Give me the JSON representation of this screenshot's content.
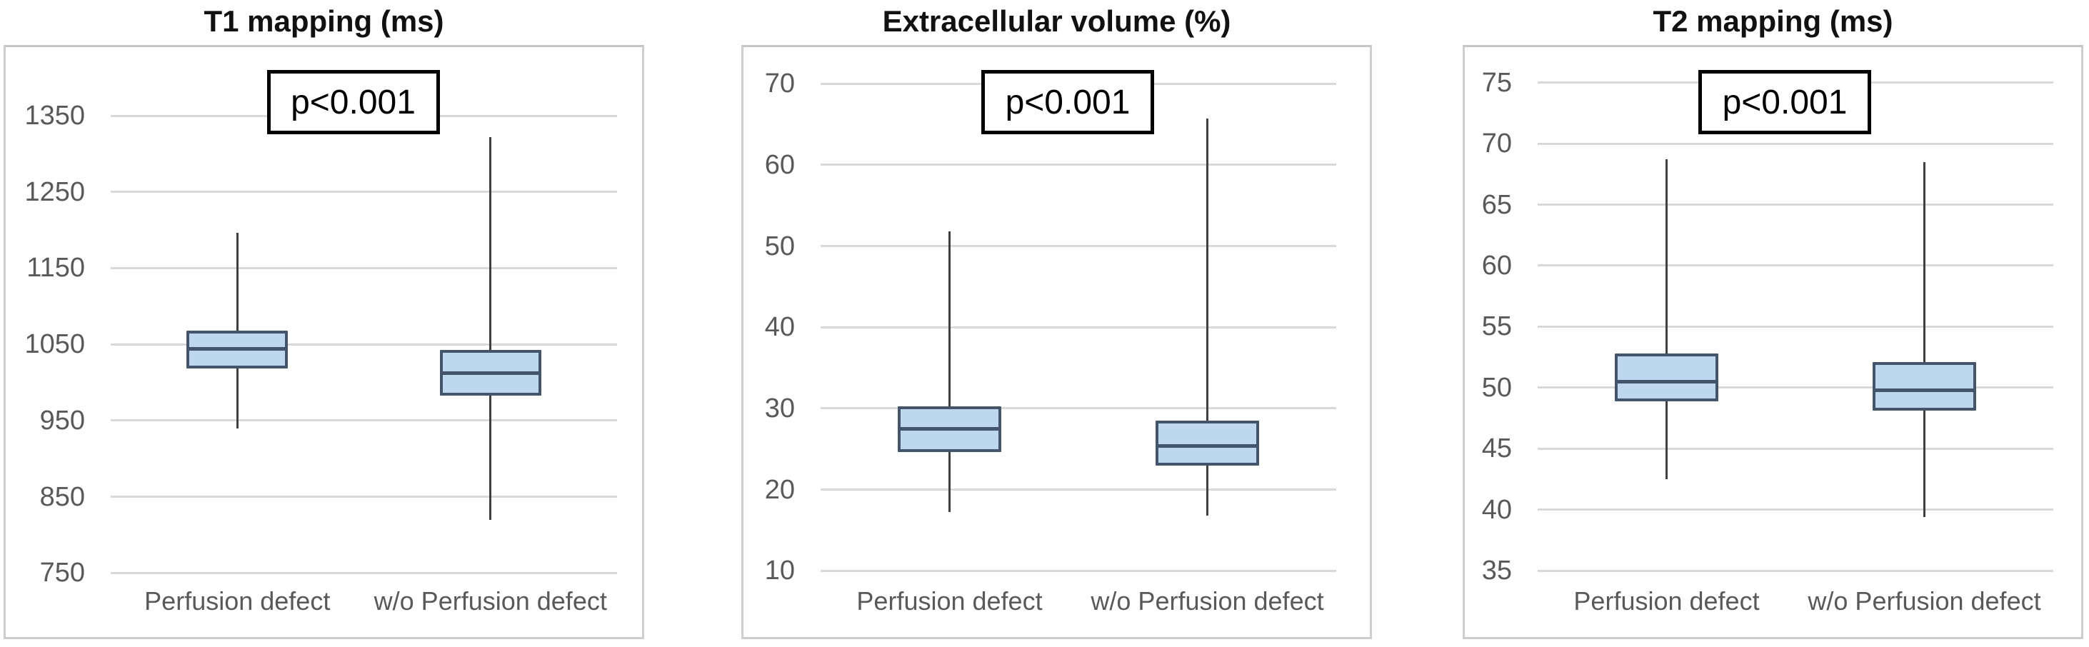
{
  "figure_title": "",
  "colors": {
    "box_fill": "#bdd7ee",
    "box_border": "#44546a",
    "median": "#44546a",
    "whisker": "#404040",
    "gridline": "#d9d9d9",
    "panel_border": "#cfcdcd",
    "tick_label": "#595959",
    "category_label": "#595959",
    "title": "#111111",
    "annotation_border": "#000000"
  },
  "chart_data": [
    {
      "type": "boxplot",
      "title": "T1 mapping (ms)",
      "annotation": "p<0.001",
      "grid": true,
      "legend": "none",
      "categories": [
        "Perfusion defect",
        "w/o Perfusion defect"
      ],
      "axis": {
        "min": 740,
        "max": 1440,
        "ticks": [
          750,
          850,
          950,
          1050,
          1150,
          1250,
          1350
        ]
      },
      "series": [
        {
          "name": "Perfusion defect",
          "min": 940,
          "q1": 1018,
          "median": 1044,
          "q3": 1068,
          "max": 1196
        },
        {
          "name": "w/o Perfusion defect",
          "min": 820,
          "q1": 983,
          "median": 1012,
          "q3": 1043,
          "max": 1322
        }
      ]
    },
    {
      "type": "boxplot",
      "title": "Extracellular volume (%)",
      "annotation": "p<0.001",
      "grid": true,
      "legend": "none",
      "categories": [
        "Perfusion defect",
        "w/o Perfusion defect"
      ],
      "axis": {
        "min": 8.8,
        "max": 74.5,
        "ticks": [
          10,
          20,
          30,
          40,
          50,
          60,
          70
        ]
      },
      "series": [
        {
          "name": "Perfusion defect",
          "min": 17.2,
          "q1": 24.6,
          "median": 27.5,
          "q3": 30.3,
          "max": 51.8
        },
        {
          "name": "w/o Perfusion defect",
          "min": 16.8,
          "q1": 23.0,
          "median": 25.4,
          "q3": 28.5,
          "max": 65.7
        }
      ]
    },
    {
      "type": "boxplot",
      "title": "T2 mapping (ms)",
      "annotation": "p<0.001",
      "grid": true,
      "legend": "none",
      "categories": [
        "Perfusion defect",
        "w/o Perfusion defect"
      ],
      "axis": {
        "min": 34.2,
        "max": 77.9,
        "ticks": [
          35,
          40,
          45,
          50,
          55,
          60,
          65,
          70,
          75
        ]
      },
      "series": [
        {
          "name": "Perfusion defect",
          "min": 42.5,
          "q1": 48.9,
          "median": 50.5,
          "q3": 52.8,
          "max": 68.7
        },
        {
          "name": "w/o Perfusion defect",
          "min": 39.4,
          "q1": 48.1,
          "median": 49.8,
          "q3": 52.1,
          "max": 68.5
        }
      ]
    }
  ]
}
